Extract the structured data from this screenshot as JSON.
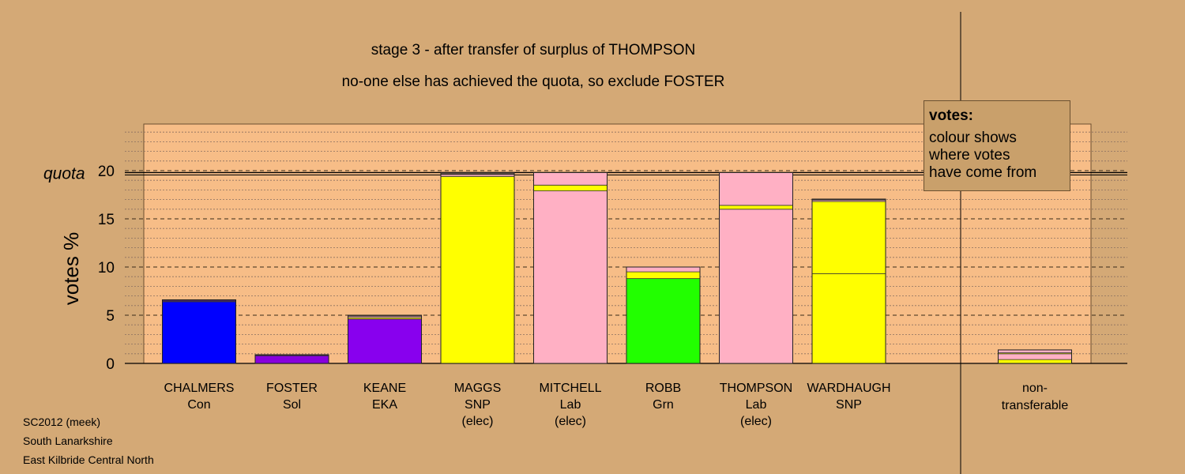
{
  "titles": {
    "line1": "stage 3 - after transfer of surplus of THOMPSON",
    "line2": "no-one else has achieved the quota, so exclude FOSTER"
  },
  "legend": {
    "title": "votes:",
    "lines": [
      "colour shows",
      "where votes",
      "have come from"
    ]
  },
  "footer": [
    "SC2012 (meek)",
    "South Lanarkshire",
    "East Kilbride Central North"
  ],
  "colors": {
    "background": "#d4a976",
    "plot_area": "#f7bd87",
    "Con": "#0000ff",
    "Sol": "#8800dd",
    "EKA": "#8800ee",
    "SNP": "#ffff00",
    "Lab": "#ffb0c4",
    "Grn": "#22ff00"
  },
  "chart_data": {
    "type": "bar",
    "stacked": true,
    "ylabel": "votes %",
    "ylim": [
      0,
      25
    ],
    "yticks": [
      0,
      5,
      10,
      15,
      20
    ],
    "quota": 19.8,
    "quota_label": "quota",
    "grid": true,
    "legend_position": "top-right",
    "candidates": [
      {
        "name": "CHALMERS",
        "party": "Con",
        "status": "",
        "segments": [
          {
            "source": "Con",
            "color": "#0000ff",
            "value": 6.4
          },
          {
            "source": "other",
            "color": "#4a2a60",
            "value": 0.2
          }
        ]
      },
      {
        "name": "FOSTER",
        "party": "Sol",
        "status": "",
        "segments": [
          {
            "source": "Sol",
            "color": "#8800dd",
            "value": 0.8
          },
          {
            "source": "other",
            "color": "#3a1a50",
            "value": 0.1
          }
        ]
      },
      {
        "name": "KEANE",
        "party": "EKA",
        "status": "",
        "segments": [
          {
            "source": "EKA",
            "color": "#8800ee",
            "value": 4.6
          },
          {
            "source": "SNP",
            "color": "#ffff00",
            "value": 0.15
          },
          {
            "source": "Lab",
            "color": "#ffb0c4",
            "value": 0.15
          },
          {
            "source": "other",
            "color": "#7a5a40",
            "value": 0.1
          }
        ]
      },
      {
        "name": "MAGGS",
        "party": "SNP",
        "status": "(elec)",
        "segments": [
          {
            "source": "SNP",
            "color": "#ffff00",
            "value": 19.4
          },
          {
            "source": "Lab",
            "color": "#ffb0c4",
            "value": 0.2
          },
          {
            "source": "other",
            "color": "#5a4a40",
            "value": 0.2
          }
        ]
      },
      {
        "name": "MITCHELL",
        "party": "Lab",
        "status": "(elec)",
        "segments": [
          {
            "source": "Lab",
            "color": "#ffb0c4",
            "value": 17.9
          },
          {
            "source": "SNP",
            "color": "#ffff00",
            "value": 0.6
          },
          {
            "source": "Lab",
            "color": "#ffb0c4",
            "value": 1.3
          }
        ]
      },
      {
        "name": "ROBB",
        "party": "Grn",
        "status": "",
        "segments": [
          {
            "source": "Grn",
            "color": "#22ff00",
            "value": 8.8
          },
          {
            "source": "SNP",
            "color": "#ffff00",
            "value": 0.7
          },
          {
            "source": "Lab",
            "color": "#ffb0c4",
            "value": 0.5
          }
        ]
      },
      {
        "name": "THOMPSON",
        "party": "Lab",
        "status": "(elec)",
        "segments": [
          {
            "source": "Lab",
            "color": "#ffb0c4",
            "value": 16.0
          },
          {
            "source": "SNP",
            "color": "#ffff00",
            "value": 0.4
          },
          {
            "source": "Lab",
            "color": "#ffb0c4",
            "value": 3.4
          }
        ]
      },
      {
        "name": "WARDHAUGH",
        "party": "SNP",
        "status": "",
        "segments": [
          {
            "source": "SNP",
            "color": "#ffff00",
            "value": 9.3
          },
          {
            "source": "SNP",
            "color": "#ffff00",
            "value": 7.5
          },
          {
            "source": "Lab",
            "color": "#ffb0c4",
            "value": 0.15
          },
          {
            "source": "other",
            "color": "#5a4a40",
            "value": 0.1
          }
        ]
      }
    ],
    "nontransferable": {
      "label_line1": "non-",
      "label_line2": "transferable",
      "segments": [
        {
          "source": "SNP",
          "color": "#ffff00",
          "value": 0.4
        },
        {
          "source": "Lab",
          "color": "#ffb0c4",
          "value": 0.6
        },
        {
          "source": "SNP",
          "color": "#ffff00",
          "value": 0.1
        },
        {
          "source": "Lab",
          "color": "#ffb0c4",
          "value": 0.3
        }
      ]
    }
  }
}
